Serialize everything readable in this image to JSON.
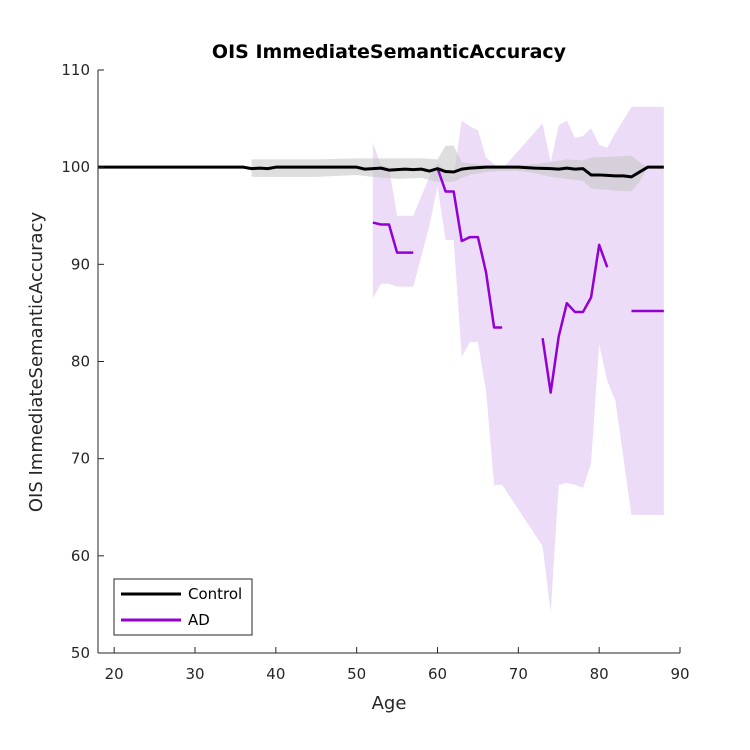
{
  "chart_data": {
    "type": "line",
    "title": "OIS ImmediateSemanticAccuracy",
    "xlabel": "Age",
    "ylabel": "OIS ImmediateSemanticAccuracy",
    "xlim": [
      18,
      90
    ],
    "ylim": [
      50,
      110
    ],
    "xticks": [
      20,
      30,
      40,
      50,
      60,
      70,
      80,
      90
    ],
    "yticks": [
      50,
      60,
      70,
      80,
      90,
      100,
      110
    ],
    "grid": false,
    "legend_position": "bottom-left",
    "colors": {
      "control": "#000000",
      "ad": "#9400D3",
      "control_band": "#c8c8c8",
      "ad_band": "#e6d0f5"
    },
    "series": [
      {
        "name": "Control",
        "segments": [
          [
            [
              18,
              100
            ],
            [
              36,
              100
            ],
            [
              37,
              99.85
            ],
            [
              38,
              99.9
            ],
            [
              39,
              99.85
            ],
            [
              40,
              100
            ],
            [
              42,
              100
            ],
            [
              44,
              100
            ],
            [
              46,
              100
            ],
            [
              48,
              100
            ],
            [
              50,
              100
            ],
            [
              51,
              99.8
            ],
            [
              52,
              99.85
            ],
            [
              53,
              99.9
            ],
            [
              54,
              99.7
            ],
            [
              55,
              99.75
            ],
            [
              56,
              99.8
            ],
            [
              57,
              99.75
            ],
            [
              58,
              99.8
            ],
            [
              59,
              99.6
            ],
            [
              60,
              99.85
            ],
            [
              61,
              99.55
            ],
            [
              62,
              99.5
            ],
            [
              63,
              99.8
            ],
            [
              64,
              99.9
            ],
            [
              65,
              99.95
            ],
            [
              66,
              100
            ],
            [
              68,
              100
            ],
            [
              70,
              100
            ],
            [
              72,
              99.9
            ],
            [
              74,
              99.85
            ],
            [
              75,
              99.8
            ],
            [
              76,
              99.9
            ],
            [
              77,
              99.8
            ],
            [
              78,
              99.85
            ],
            [
              79,
              99.2
            ],
            [
              80,
              99.2
            ],
            [
              81,
              99.15
            ],
            [
              82,
              99.1
            ],
            [
              83,
              99.1
            ],
            [
              84,
              99.0
            ],
            [
              85,
              99.5
            ],
            [
              86,
              100
            ],
            [
              88,
              100
            ]
          ]
        ],
        "band": [
          [
            37,
            100.8,
            99.0
          ],
          [
            40,
            100.8,
            99.0
          ],
          [
            45,
            100.8,
            99.0
          ],
          [
            50,
            100.9,
            99.2
          ],
          [
            52,
            100.9,
            99.0
          ],
          [
            55,
            100.9,
            98.8
          ],
          [
            58,
            100.9,
            98.9
          ],
          [
            60,
            100.8,
            98.5
          ],
          [
            61,
            102.2,
            98.5
          ],
          [
            62,
            102.2,
            98.5
          ],
          [
            63,
            100.5,
            98.9
          ],
          [
            64,
            100.4,
            99.2
          ],
          [
            66,
            100.2,
            99.5
          ],
          [
            68,
            100.2,
            99.6
          ],
          [
            70,
            100.2,
            99.6
          ],
          [
            72,
            100.3,
            99.4
          ],
          [
            74,
            100.5,
            99.0
          ],
          [
            76,
            100.8,
            98.8
          ],
          [
            78,
            100.7,
            98.6
          ],
          [
            79,
            101.0,
            97.8
          ],
          [
            82,
            101.1,
            97.6
          ],
          [
            84,
            101.2,
            97.5
          ],
          [
            85,
            100.5,
            98.5
          ],
          [
            86,
            100.0,
            100.0
          ]
        ]
      },
      {
        "name": "AD",
        "segments": [
          [
            [
              52,
              94.3
            ],
            [
              53,
              94.1
            ],
            [
              54,
              94.1
            ],
            [
              55,
              91.2
            ],
            [
              57,
              91.2
            ]
          ],
          [
            [
              60,
              99.9
            ],
            [
              61,
              97.5
            ],
            [
              62,
              97.5
            ],
            [
              63,
              92.4
            ],
            [
              64,
              92.8
            ],
            [
              65,
              92.8
            ],
            [
              66,
              89.2
            ],
            [
              67,
              83.5
            ],
            [
              68,
              83.5
            ]
          ],
          [
            [
              73,
              82.4
            ],
            [
              74,
              76.8
            ],
            [
              75,
              82.6
            ],
            [
              76,
              86.0
            ],
            [
              77,
              85.1
            ],
            [
              78,
              85.1
            ],
            [
              79,
              86.6
            ],
            [
              80,
              92.0
            ],
            [
              81,
              89.7
            ]
          ],
          [
            [
              84,
              85.2
            ],
            [
              88,
              85.2
            ]
          ]
        ],
        "band": [
          [
            52,
            102.5,
            86.5
          ],
          [
            53,
            100.2,
            88.0
          ],
          [
            54,
            100.0,
            88.0
          ],
          [
            55,
            95.0,
            87.7
          ],
          [
            57,
            95.0,
            87.7
          ],
          [
            59,
            99.0,
            94.0
          ],
          [
            60,
            100.5,
            98.0
          ],
          [
            61,
            99.5,
            92.5
          ],
          [
            62,
            99.0,
            92.5
          ],
          [
            63,
            104.8,
            80.5
          ],
          [
            64,
            104.2,
            82.0
          ],
          [
            65,
            103.8,
            82.0
          ],
          [
            66,
            101.0,
            77.0
          ],
          [
            67,
            100.3,
            67.3
          ],
          [
            68,
            99.8,
            67.3
          ],
          [
            73,
            104.5,
            61.0
          ],
          [
            74,
            100.5,
            54.2
          ],
          [
            75,
            104.3,
            67.3
          ],
          [
            76,
            104.8,
            67.5
          ],
          [
            77,
            103.0,
            67.3
          ],
          [
            78,
            103.2,
            67.0
          ],
          [
            79,
            104.0,
            69.5
          ],
          [
            80,
            102.3,
            81.8
          ],
          [
            81,
            102.0,
            78.0
          ],
          [
            82,
            103.5,
            76.0
          ],
          [
            84,
            106.2,
            64.2
          ],
          [
            88,
            106.2,
            64.2
          ]
        ]
      }
    ]
  }
}
